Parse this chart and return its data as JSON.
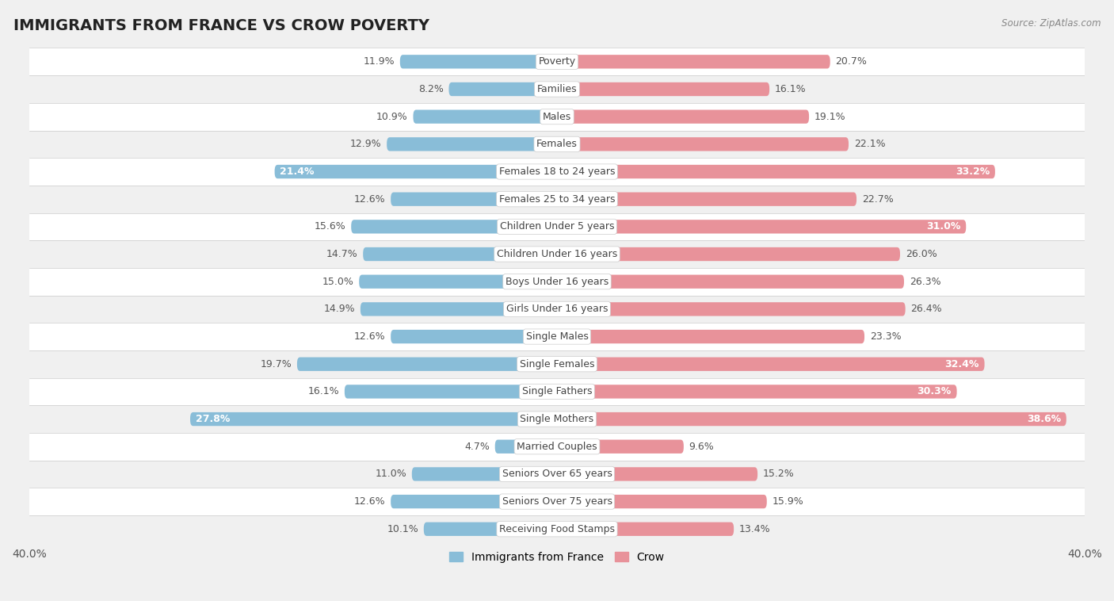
{
  "title": "IMMIGRANTS FROM FRANCE VS CROW POVERTY",
  "source": "Source: ZipAtlas.com",
  "categories": [
    "Poverty",
    "Families",
    "Males",
    "Females",
    "Females 18 to 24 years",
    "Females 25 to 34 years",
    "Children Under 5 years",
    "Children Under 16 years",
    "Boys Under 16 years",
    "Girls Under 16 years",
    "Single Males",
    "Single Females",
    "Single Fathers",
    "Single Mothers",
    "Married Couples",
    "Seniors Over 65 years",
    "Seniors Over 75 years",
    "Receiving Food Stamps"
  ],
  "france_values": [
    11.9,
    8.2,
    10.9,
    12.9,
    21.4,
    12.6,
    15.6,
    14.7,
    15.0,
    14.9,
    12.6,
    19.7,
    16.1,
    27.8,
    4.7,
    11.0,
    12.6,
    10.1
  ],
  "crow_values": [
    20.7,
    16.1,
    19.1,
    22.1,
    33.2,
    22.7,
    31.0,
    26.0,
    26.3,
    26.4,
    23.3,
    32.4,
    30.3,
    38.6,
    9.6,
    15.2,
    15.9,
    13.4
  ],
  "france_color": "#89bdd8",
  "crow_color": "#e8929a",
  "france_label": "Immigrants from France",
  "crow_label": "Crow",
  "xlim": 40.0,
  "bg_color": "#f0f0f0",
  "row_alt_color": "#ffffff",
  "bar_height": 0.5,
  "title_fontsize": 14,
  "label_fontsize": 9,
  "value_fontsize": 9
}
